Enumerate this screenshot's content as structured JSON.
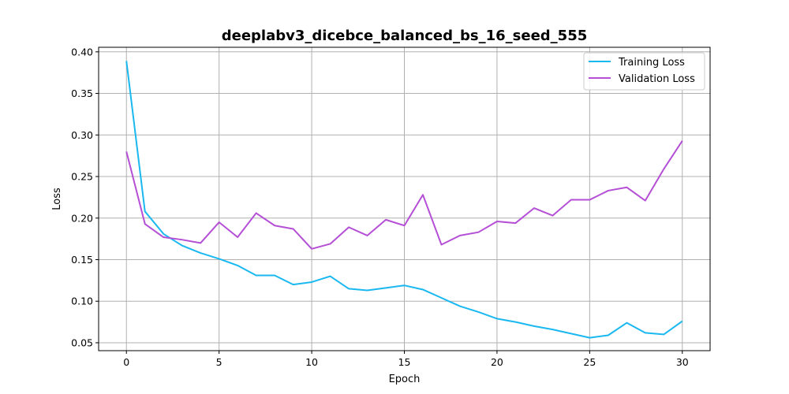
{
  "chart_data": {
    "type": "line",
    "title": "deeplabv3_dicebce_balanced_bs_16_seed_555",
    "xlabel": "Epoch",
    "ylabel": "Loss",
    "xlim": [
      -1.5,
      31.5
    ],
    "ylim": [
      0.0405,
      0.4055
    ],
    "xticks": [
      0,
      5,
      10,
      15,
      20,
      25,
      30
    ],
    "yticks": [
      0.05,
      0.1,
      0.15,
      0.2,
      0.25,
      0.3,
      0.35,
      0.4
    ],
    "ytick_labels": [
      "0.05",
      "0.10",
      "0.15",
      "0.20",
      "0.25",
      "0.30",
      "0.35",
      "0.40"
    ],
    "grid": true,
    "legend_position": "top-right",
    "x": [
      0,
      1,
      2,
      3,
      4,
      5,
      6,
      7,
      8,
      9,
      10,
      11,
      12,
      13,
      14,
      15,
      16,
      17,
      18,
      19,
      20,
      21,
      22,
      23,
      24,
      25,
      26,
      27,
      28,
      29,
      30
    ],
    "series": [
      {
        "name": "Training Loss",
        "color": "#1ab8f0",
        "values": [
          0.389,
          0.208,
          0.181,
          0.167,
          0.158,
          0.151,
          0.143,
          0.131,
          0.131,
          0.12,
          0.123,
          0.13,
          0.115,
          0.113,
          0.116,
          0.119,
          0.114,
          0.104,
          0.094,
          0.087,
          0.079,
          0.075,
          0.07,
          0.066,
          0.061,
          0.056,
          0.059,
          0.074,
          0.062,
          0.06,
          0.076
        ]
      },
      {
        "name": "Validation Loss",
        "color": "#b44fd6",
        "values": [
          0.28,
          0.193,
          0.177,
          0.174,
          0.17,
          0.195,
          0.177,
          0.206,
          0.191,
          0.187,
          0.163,
          0.169,
          0.189,
          0.179,
          0.198,
          0.191,
          0.228,
          0.168,
          0.179,
          0.183,
          0.196,
          0.194,
          0.212,
          0.203,
          0.222,
          0.222,
          0.233,
          0.237,
          0.221,
          0.259,
          0.293
        ]
      }
    ]
  }
}
